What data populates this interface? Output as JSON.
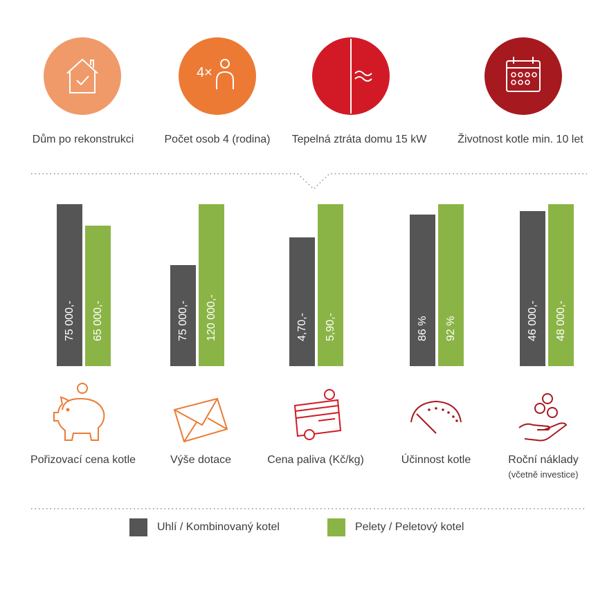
{
  "top_icons": [
    {
      "label": "Dům po rekonstrukci",
      "icon": "house-check-icon",
      "color": "#f09a6a"
    },
    {
      "label": "Počet osob 4 (rodina)",
      "icon": "person-4x-icon",
      "icon_text": "4×",
      "color": "#ec7a35"
    },
    {
      "label": "Tepelná ztráta domu 15 kW",
      "icon": "heat-wave-icon",
      "color": "#d11a26"
    },
    {
      "label": "Životnost kotle min. 10 let",
      "icon": "calendar-icon",
      "color": "#a6191f"
    }
  ],
  "chart_data": {
    "type": "bar",
    "categories": [
      "Pořizovací cena kotle",
      "Výše dotace",
      "Cena paliva (Kč/kg)",
      "Účinnost kotle",
      "Roční náklady"
    ],
    "category_notes": [
      "",
      "",
      "",
      "",
      "(včetně investice)"
    ],
    "series": [
      {
        "name": "Uhlí / Kombinovaný kotel",
        "color": "#555555",
        "values": [
          75000,
          75000,
          4.7,
          86,
          46000
        ],
        "labels": [
          "75 000,-",
          "75 000,-",
          "4,70,-",
          "86 %",
          "46 000,-"
        ]
      },
      {
        "name": "Pelety / Peletový kotel",
        "color": "#8bb446",
        "values": [
          65000,
          120000,
          5.9,
          92,
          48000
        ],
        "labels": [
          "65 000,-",
          "120 000,-",
          "5,90,-",
          "92 %",
          "48 000,-"
        ]
      }
    ],
    "legend_position": "bottom",
    "category_icons": [
      "piggy-bank-icon",
      "envelope-icon",
      "card-coin-icon",
      "gauge-icon",
      "hand-coins-icon"
    ],
    "category_icon_colors": [
      "#ec7a35",
      "#ec7a35",
      "#d11a26",
      "#a6191f",
      "#a6191f"
    ]
  }
}
